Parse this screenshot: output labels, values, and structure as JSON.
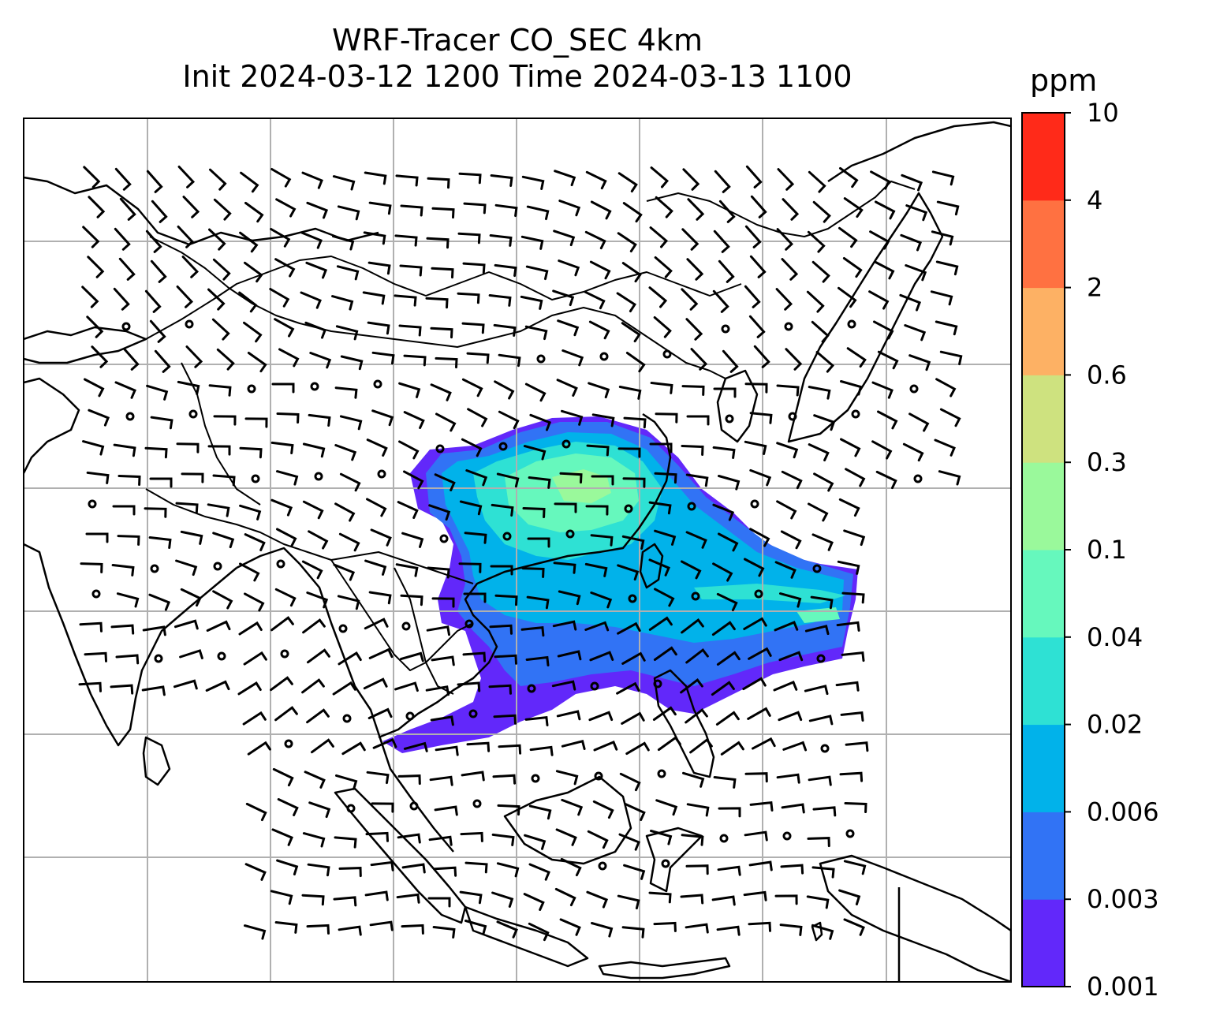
{
  "title": {
    "line1": "WRF-Tracer CO_SEC 4km",
    "line2": "Init 2024-03-12 1200 Time 2024-03-13 1100"
  },
  "colorbar": {
    "unit": "ppm",
    "levels": [
      "0.001",
      "0.003",
      "0.006",
      "0.02",
      "0.04",
      "0.1",
      "0.3",
      "0.6",
      "2",
      "4",
      "10"
    ],
    "colors": [
      "#6228fa",
      "#3173f5",
      "#01b2ea",
      "#2ee1d4",
      "#66f8bd",
      "#9af99b",
      "#cee27f",
      "#fdb164",
      "#ff7141",
      "#ff2a19"
    ]
  },
  "colors": {
    "coastline": "#000000",
    "gridlines": "#b0b0b0",
    "wind_barbs": "#000000"
  },
  "layers": [
    "coastlines",
    "country-borders",
    "lat-lon-gridlines",
    "CO_SEC tracer concentration",
    "wind-barbs"
  ]
}
